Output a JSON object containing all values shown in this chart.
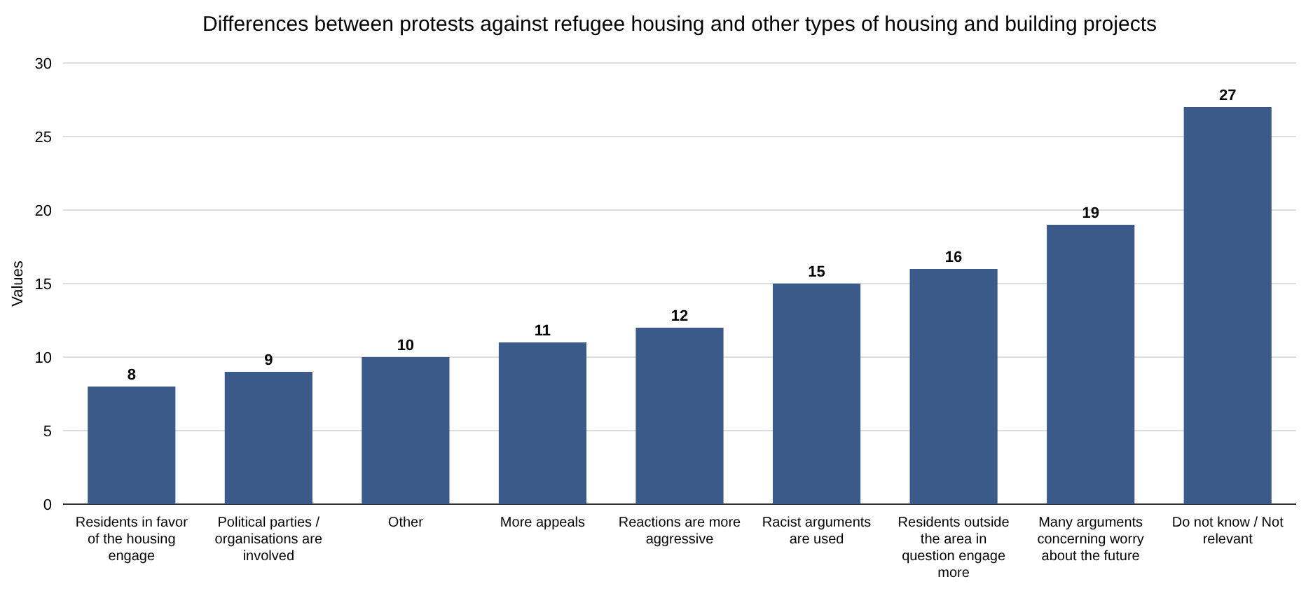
{
  "chart_data": {
    "type": "bar",
    "title": "Differences between protests against refugee housing and other types of housing and building projects",
    "ylabel": "Values",
    "categories": [
      "Residents in favor of the housing engage",
      "Political parties / organisations are involved",
      "Other",
      "More appeals",
      "Reactions are more aggressive",
      "Racist arguments are used",
      "Residents outside the area in question engage more",
      "Many arguments concerning worry about the future",
      "Do not know / Not relevant"
    ],
    "values": [
      8,
      9,
      10,
      11,
      12,
      15,
      16,
      19,
      27
    ],
    "color": "#3a5a89",
    "ylim": [
      0,
      30
    ],
    "yticks": [
      0,
      5,
      10,
      15,
      20,
      25,
      30
    ],
    "grid": "y",
    "data_labels": true
  }
}
